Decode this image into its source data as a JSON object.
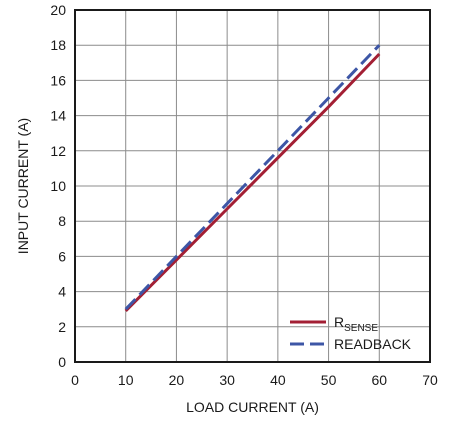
{
  "chart_data": {
    "type": "line",
    "xlabel": "LOAD CURRENT (A)",
    "ylabel": "INPUT CURRENT (A)",
    "xlim": [
      0,
      70
    ],
    "ylim": [
      0,
      20
    ],
    "x_ticks": [
      "0",
      "10",
      "20",
      "30",
      "40",
      "50",
      "60",
      "70"
    ],
    "y_ticks": [
      "0",
      "2",
      "4",
      "6",
      "8",
      "10",
      "12",
      "14",
      "16",
      "18",
      "20"
    ],
    "grid": true,
    "legend_position": "bottom-right",
    "series": [
      {
        "name": "RSENSE",
        "legend_main": "R",
        "legend_sub": "SENSE",
        "color": "#a31f34",
        "style": "solid",
        "x": [
          10,
          20,
          30,
          40,
          50,
          60
        ],
        "y": [
          2.9,
          5.8,
          8.7,
          11.6,
          14.5,
          17.5
        ]
      },
      {
        "name": "READBACK",
        "legend_main": "READBACK",
        "legend_sub": "",
        "color": "#3d56a6",
        "style": "dashed",
        "x": [
          10,
          20,
          30,
          40,
          50,
          60
        ],
        "y": [
          3.0,
          6.0,
          9.0,
          12.0,
          15.0,
          18.0
        ]
      }
    ]
  }
}
